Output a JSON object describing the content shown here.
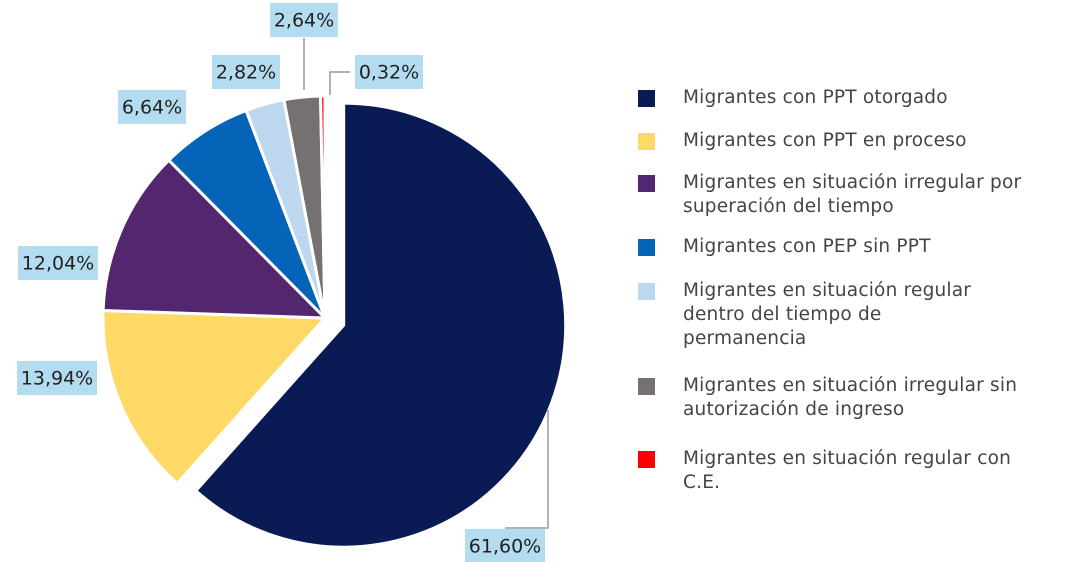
{
  "chart_data": {
    "type": "pie",
    "categories": [
      "Migrantes con PPT otorgado",
      "Migrantes con PPT en proceso",
      "Migrantes en situación irregular por superación del tiempo",
      "Migrantes con PEP sin PPT",
      "Migrantes en situación regular dentro del tiempo de permanencia",
      "Migrantes en situación irregular sin autorización de ingreso",
      "Migrantes en situación regular con C.E."
    ],
    "values": [
      61.6,
      13.94,
      12.04,
      6.64,
      2.82,
      2.64,
      0.32
    ],
    "value_labels": [
      "61,60%",
      "13,94%",
      "12,04%",
      "6,64%",
      "2,82%",
      "2,64%",
      "0,32%"
    ],
    "colors": [
      "#0a1a55",
      "#ffd966",
      "#532670",
      "#0563b8",
      "#bdd7ee",
      "#767171",
      "#ff0000"
    ],
    "legend": "right"
  }
}
